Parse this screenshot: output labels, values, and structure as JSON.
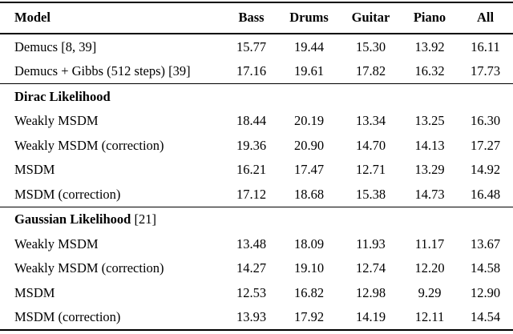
{
  "colors": {
    "text": "#000000",
    "background": "#ffffff",
    "rule": "#000000"
  },
  "table": {
    "columns": [
      {
        "id": "model",
        "label": "Model"
      },
      {
        "id": "bass",
        "label": "Bass"
      },
      {
        "id": "drums",
        "label": "Drums"
      },
      {
        "id": "guitar",
        "label": "Guitar"
      },
      {
        "id": "piano",
        "label": "Piano"
      },
      {
        "id": "all",
        "label": "All"
      }
    ],
    "rows": [
      {
        "kind": "data",
        "label": "Demucs [8, 39]",
        "values": [
          "15.77",
          "19.44",
          "15.30",
          "13.92",
          "16.11"
        ]
      },
      {
        "kind": "data",
        "label": "Demucs + Gibbs (512 steps) [39]",
        "values": [
          "17.16",
          "19.61",
          "17.82",
          "16.32",
          "17.73"
        ],
        "rule_after": true
      },
      {
        "kind": "section",
        "label_bold": "Dirac Likelihood",
        "label_rest": ""
      },
      {
        "kind": "data",
        "label": "Weakly MSDM",
        "values": [
          "18.44",
          "20.19",
          "13.34",
          "13.25",
          "16.30"
        ]
      },
      {
        "kind": "data",
        "label": "Weakly MSDM (correction)",
        "values": [
          "19.36",
          "20.90",
          "14.70",
          "14.13",
          "17.27"
        ]
      },
      {
        "kind": "data",
        "label": "MSDM",
        "values": [
          "16.21",
          "17.47",
          "12.71",
          "13.29",
          "14.92"
        ]
      },
      {
        "kind": "data",
        "label": "MSDM (correction)",
        "values": [
          "17.12",
          "18.68",
          "15.38",
          "14.73",
          "16.48"
        ],
        "rule_after": true
      },
      {
        "kind": "section",
        "label_bold": "Gaussian Likelihood",
        "label_rest": " [21]"
      },
      {
        "kind": "data",
        "label": "Weakly MSDM",
        "values": [
          "13.48",
          "18.09",
          "11.93",
          "11.17",
          "13.67"
        ]
      },
      {
        "kind": "data",
        "label": "Weakly MSDM (correction)",
        "values": [
          "14.27",
          "19.10",
          "12.74",
          "12.20",
          "14.58"
        ]
      },
      {
        "kind": "data",
        "label": "MSDM",
        "values": [
          "12.53",
          "16.82",
          "12.98",
          "9.29",
          "12.90"
        ]
      },
      {
        "kind": "data",
        "label": "MSDM (correction)",
        "values": [
          "13.93",
          "17.92",
          "14.19",
          "12.11",
          "14.54"
        ]
      }
    ]
  }
}
